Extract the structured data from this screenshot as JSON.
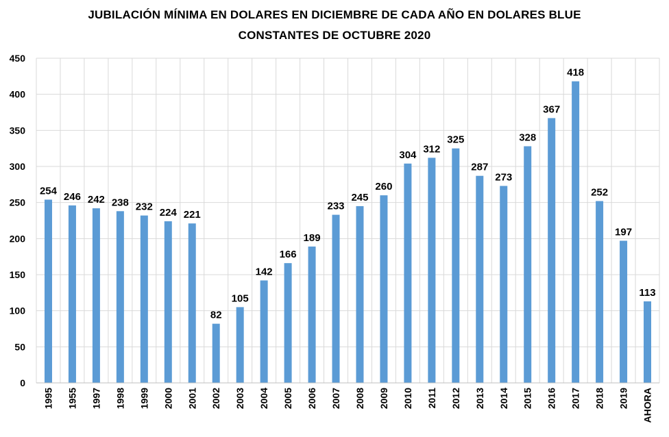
{
  "title_line1": "JUBILACIÓN MÍNIMA EN DOLARES EN DICIEMBRE DE CADA AÑO EN DOLARES BLUE",
  "title_line2": "CONSTANTES DE OCTUBRE 2020",
  "chart_data": {
    "type": "bar",
    "title": "JUBILACIÓN MÍNIMA EN DOLARES EN DICIEMBRE DE CADA AÑO EN DOLARES BLUE CONSTANTES DE OCTUBRE 2020",
    "categories": [
      "1995",
      "1955",
      "1997",
      "1998",
      "1999",
      "2000",
      "2001",
      "2002",
      "2003",
      "2004",
      "2005",
      "2006",
      "2007",
      "2008",
      "2009",
      "2010",
      "2011",
      "2012",
      "2013",
      "2014",
      "2015",
      "2016",
      "2017",
      "2018",
      "2019",
      "AHORA"
    ],
    "values": [
      254,
      246,
      242,
      238,
      232,
      224,
      221,
      82,
      105,
      142,
      166,
      189,
      233,
      245,
      260,
      304,
      312,
      325,
      287,
      273,
      328,
      367,
      418,
      252,
      197,
      113
    ],
    "ylim": [
      0,
      450
    ],
    "yticks": [
      0,
      50,
      100,
      150,
      200,
      250,
      300,
      350,
      400,
      450
    ],
    "xlabel": "",
    "ylabel": "",
    "grid": true,
    "data_labels": true,
    "bar_color": "#5b9bd5",
    "grid_color": "#d9d9d9"
  }
}
